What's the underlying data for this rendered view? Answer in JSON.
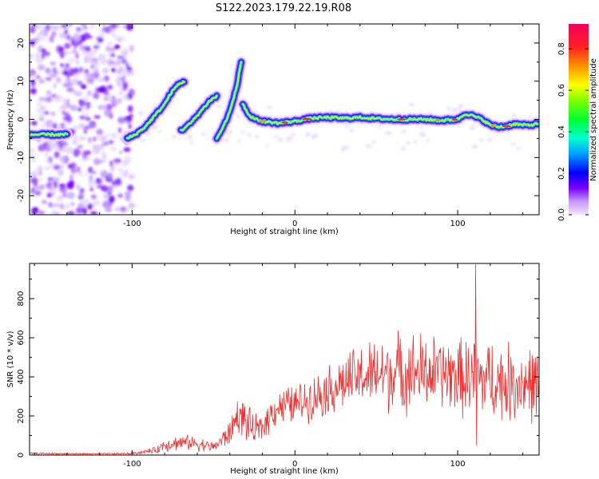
{
  "title": "S122.2023.179.22.19.R08",
  "chart_data": [
    {
      "type": "heatmap",
      "name": "spectrogram",
      "xlabel": "Height of straight line (km)",
      "ylabel": "Frequency (Hz)",
      "xlim": [
        -163,
        150
      ],
      "ylim": [
        -25,
        25
      ],
      "xticks": [
        -100,
        0,
        100
      ],
      "xtick_labels": [
        "-100",
        "0",
        "100"
      ],
      "yticks": [
        -20,
        -10,
        0,
        10,
        20
      ],
      "ytick_labels": [
        "-20",
        "-10",
        "0",
        "10",
        "20"
      ],
      "noise_region_x": [
        -163,
        -100
      ],
      "tracks": [
        {
          "name": "main-track",
          "x": [
            -32,
            -28,
            -24,
            -20,
            -10,
            0,
            10,
            20,
            30,
            40,
            50,
            60,
            70,
            80,
            90,
            100,
            105,
            110,
            115,
            120,
            125,
            130,
            135,
            140,
            145,
            150
          ],
          "y": [
            4,
            1,
            0,
            -0.5,
            -1,
            -0.5,
            0.3,
            0.5,
            0.3,
            0.5,
            0.2,
            0,
            0,
            0,
            -0.3,
            0,
            1.5,
            0.8,
            0,
            -1.5,
            -2,
            -1.8,
            -1.2,
            -1.5,
            -1.5,
            -1
          ]
        },
        {
          "name": "rising-track-a",
          "x": [
            -103,
            -98,
            -92,
            -86,
            -80,
            -76,
            -72,
            -68
          ],
          "y": [
            -5,
            -4,
            -2,
            1,
            4,
            7,
            9,
            10
          ]
        },
        {
          "name": "rising-track-b",
          "x": [
            -70,
            -64,
            -58,
            -52,
            -48
          ],
          "y": [
            -3,
            -1,
            2,
            5,
            6
          ]
        },
        {
          "name": "rising-track-c",
          "x": [
            -48,
            -44,
            -40,
            -36,
            -33
          ],
          "y": [
            -5,
            -2,
            2,
            8,
            15
          ]
        },
        {
          "name": "left-track",
          "x": [
            -163,
            -155,
            -147,
            -140
          ],
          "y": [
            -4,
            -4,
            -4,
            -4
          ]
        }
      ],
      "colorbar": {
        "label": "Normalized spectral amplitude",
        "ticks": [
          0.0,
          0.2,
          0.4,
          0.6,
          0.8
        ],
        "tick_labels": [
          "0.0",
          "0.2",
          "0.4",
          "0.6",
          "0.8"
        ],
        "range": [
          0,
          0.92
        ]
      }
    },
    {
      "type": "line",
      "name": "snr",
      "xlabel": "Height of straight line (km)",
      "ylabel": "SNR (10 * v/v)",
      "xlim": [
        -163,
        150
      ],
      "ylim": [
        0,
        980
      ],
      "xticks": [
        -100,
        0,
        100
      ],
      "xtick_labels": [
        "-100",
        "0",
        "100"
      ],
      "yticks": [
        0,
        200,
        400,
        600,
        800
      ],
      "ytick_labels": [
        "0",
        "200",
        "400",
        "600",
        "800"
      ],
      "color": "#ee3030",
      "envelope_x": [
        -163,
        -120,
        -100,
        -85,
        -80,
        -70,
        -60,
        -50,
        -40,
        -35,
        -30,
        -25,
        -20,
        -15,
        -10,
        0,
        10,
        20,
        30,
        40,
        50,
        60,
        70,
        80,
        90,
        100,
        110,
        120,
        130,
        140,
        150
      ],
      "envelope_mean": [
        8,
        6,
        8,
        25,
        55,
        65,
        60,
        40,
        110,
        210,
        170,
        120,
        140,
        210,
        250,
        260,
        290,
        330,
        370,
        400,
        410,
        420,
        430,
        420,
        420,
        400,
        390,
        390,
        370,
        370,
        360
      ],
      "envelope_amp": [
        6,
        4,
        6,
        20,
        45,
        45,
        45,
        30,
        80,
        110,
        120,
        90,
        100,
        100,
        110,
        120,
        130,
        150,
        170,
        190,
        220,
        240,
        240,
        240,
        220,
        230,
        250,
        240,
        240,
        230,
        230
      ],
      "spikes": [
        {
          "x": 111,
          "y": 975
        },
        {
          "x": 111.6,
          "y": 50
        }
      ]
    }
  ]
}
